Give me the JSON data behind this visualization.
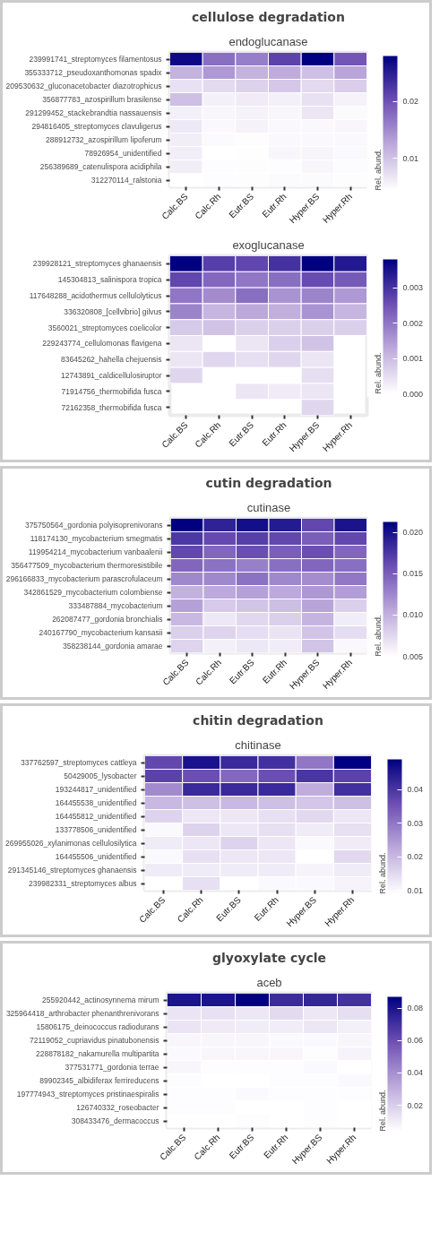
{
  "chart_data": [
    {
      "type": "heatmap",
      "title": "cellulose degradation",
      "subtitle": "endoglucanase",
      "clabel": "Rel. abund.",
      "categories": [
        "Calc.BS",
        "Calc.Rh",
        "Eutr.BS",
        "Eutr.Rh",
        "Hyper.BS",
        "Hyper.Rh"
      ],
      "y_categories": [
        "239991741_streptomyces filamentosus",
        "355333712_pseudoxanthomonas spadix",
        "209530632_gluconacetobacter diazotrophicus",
        "356877783_azospirillum brasilense",
        "291299452_stackebrandtia nassauensis",
        "294816405_streptomyces clavuligerus",
        "288912732_azospirillum lipoferum",
        "78926954_unidentified",
        "256389689_catenulispora acidiphila",
        "312270114_ralstonia"
      ],
      "cells": [
        [
          0.027,
          0.0174,
          0.0162,
          0.0214,
          0.028,
          0.0197
        ],
        [
          0.0115,
          0.0138,
          0.0115,
          0.0122,
          0.0103,
          0.0127
        ],
        [
          0.0072,
          0.0079,
          0.0086,
          0.0096,
          0.0079,
          0.0091
        ],
        [
          0.0103,
          0.0058,
          0.0063,
          0.0058,
          0.0072,
          0.0056
        ],
        [
          0.0058,
          0.0053,
          0.0056,
          0.0053,
          0.0068,
          0.0049
        ],
        [
          0.0065,
          0.0051,
          0.0056,
          0.0051,
          0.0051,
          0.0053
        ],
        [
          0.006,
          0.0049,
          0.0046,
          0.0051,
          0.0051,
          0.0051
        ],
        [
          0.006,
          0.0044,
          0.0045,
          0.0053,
          0.0055,
          0.005
        ],
        [
          0.006,
          0.0047,
          0.0046,
          0.0047,
          0.0053,
          0.0048
        ],
        [
          0.0044,
          0.0047,
          0.0046,
          0.0049,
          0.0049,
          0.0046
        ]
      ],
      "clim": [
        0.0044,
        0.028
      ],
      "cticks": [
        0.01,
        0.02
      ]
    },
    {
      "type": "heatmap",
      "subtitle": "exoglucanase",
      "clabel": "Rel. abund.",
      "categories": [
        "Calc.BS",
        "Calc.Rh",
        "Eutr.BS",
        "Eutr.Rh",
        "Hyper.BS",
        "Hyper.Rh"
      ],
      "y_categories": [
        "239928121_streptomyces ghanaensis",
        "145304813_salinispora tropica",
        "117648288_acidothermus cellulolyticus",
        "336320808_[cellvibrio] gilvus",
        "3560021_streptomyces coelicolor",
        "229243774_cellulomonas flavigena",
        "83645262_hahella chejuensis",
        "12743891_caldicellulosiruptor",
        "71914756_thermobifida fusca",
        "72162358_thermobifida fusca"
      ],
      "cells": [
        [
          0.0038,
          0.0028,
          0.0027,
          0.003,
          0.0038,
          0.0034
        ],
        [
          0.0027,
          0.0022,
          0.002,
          0.0021,
          0.0026,
          0.0024
        ],
        [
          0.002,
          0.0017,
          0.0021,
          0.0016,
          0.0018,
          0.0015
        ],
        [
          0.0018,
          0.0011,
          0.0013,
          0.0012,
          0.0016,
          0.0011
        ],
        [
          0.0008,
          0.0009,
          0.0007,
          0.0007,
          0.0007,
          0.0007
        ],
        [
          0.0004,
          null,
          0.0004,
          0.0007,
          0.0009,
          null
        ],
        [
          0.0004,
          0.0006,
          0.0005,
          0.0006,
          0.0004,
          null
        ],
        [
          0.0006,
          null,
          null,
          null,
          0.0005,
          null
        ],
        [
          null,
          null,
          0.0004,
          0.0003,
          0.0004,
          null
        ],
        [
          null,
          null,
          null,
          null,
          0.0006,
          null
        ]
      ],
      "clim": [
        0,
        0.0038
      ],
      "cticks": [
        {
          "value": 0,
          "label": "0.000"
        },
        0.001,
        0.002,
        0.003
      ]
    },
    {
      "type": "heatmap",
      "title": "cutin degradation",
      "subtitle": "cutinase",
      "clabel": "Rel. abund.",
      "categories": [
        "Calc.BS",
        "Calc.Rh",
        "Eutr.BS",
        "Eutr.Rh",
        "Hyper.BS",
        "Hyper.Rh"
      ],
      "y_categories": [
        "375750564_gordonia polyisoprenivorans",
        "118174130_mycobacterium smegmatis",
        "119954214_mycobacterium vanbaalenii",
        "356477509_mycobacterium thermoresistibile",
        "296166833_mycobacterium parascrofulaceum",
        "342861529_mycobacterium colombiense",
        "333487884_mycobacterium",
        "262087477_gordonia bronchialis",
        "240167790_mycobacterium kansasii",
        "358238144_gordonia amarae"
      ],
      "cells": [
        [
          0.0213,
          0.019,
          0.0203,
          0.0195,
          0.0165,
          0.02
        ],
        [
          0.0175,
          0.0163,
          0.017,
          0.0165,
          0.015,
          0.0165
        ],
        [
          0.0165,
          0.0145,
          0.016,
          0.015,
          0.016,
          0.0145
        ],
        [
          0.0145,
          0.0138,
          0.013,
          0.014,
          0.0145,
          0.014
        ],
        [
          0.0125,
          0.0125,
          0.0138,
          0.0125,
          0.0122,
          0.0135
        ],
        [
          0.01,
          0.0105,
          0.011,
          0.0105,
          0.0115,
          0.0112
        ],
        [
          0.011,
          0.0085,
          0.0088,
          0.0092,
          0.0108,
          0.008
        ],
        [
          0.0095,
          0.0065,
          0.0075,
          0.008,
          0.0098,
          0.0062
        ],
        [
          0.008,
          0.0078,
          0.0072,
          0.0068,
          0.0088,
          0.0072
        ],
        [
          0.0078,
          0.006,
          0.0065,
          0.0062,
          0.0088,
          0.0055
        ]
      ],
      "clim": [
        0.005,
        0.0213
      ],
      "cticks": [
        {
          "value": 0.005,
          "label": "0.005"
        },
        {
          "value": 0.01,
          "label": "0.010"
        },
        0.015,
        {
          "value": 0.02,
          "label": "0.020"
        }
      ]
    },
    {
      "type": "heatmap",
      "title": "chitin degradation",
      "subtitle": "chitinase",
      "clabel": "Rel. abund.",
      "categories": [
        "Calc.BS",
        "Calc.Rh",
        "Eutr.BS",
        "Eutr.Rh",
        "Hyper.BS",
        "Hyper.Rh"
      ],
      "y_categories": [
        "337762597_streptomyces cattleya",
        "50429005_lysobacter",
        "193244817_unidentified",
        "164455538_unidentified",
        "164455812_unidentified",
        "133778506_unidentified",
        "269955026_xylanimonas cellulosilytica",
        "164455506_unidentified",
        "291345146_streptomyces ghanaensis",
        "239982331_streptomyces albus"
      ],
      "cells": [
        [
          0.037,
          0.046,
          0.042,
          0.041,
          0.03,
          0.049
        ],
        [
          0.038,
          0.036,
          0.032,
          0.036,
          0.04,
          0.038
        ],
        [
          0.027,
          0.042,
          0.042,
          0.042,
          0.022,
          0.041
        ],
        [
          0.02,
          0.019,
          0.02,
          0.019,
          0.018,
          0.019
        ],
        [
          0.016,
          0.013,
          0.013,
          0.014,
          0.015,
          0.013
        ],
        [
          0.01,
          0.016,
          0.013,
          0.014,
          0.012,
          0.014
        ],
        [
          0.012,
          0.013,
          0.016,
          0.013,
          0.01,
          0.012
        ],
        [
          0.01,
          0.014,
          0.013,
          0.013,
          0.009,
          0.015
        ],
        [
          0.012,
          0.012,
          0.012,
          0.012,
          0.011,
          0.012
        ],
        [
          0.009,
          0.014,
          0.009,
          0.01,
          0.01,
          0.011
        ]
      ],
      "clim": [
        0.009,
        0.049
      ],
      "cticks": [
        0.01,
        0.02,
        0.03,
        0.04
      ]
    },
    {
      "type": "heatmap",
      "title": "glyoxylate cycle",
      "subtitle": "aceb",
      "clabel": "Rel. abund.",
      "categories": [
        "Calc.BS",
        "Calc.Rh",
        "Eutr.BS",
        "Eutr.Rh",
        "Hyper.BS",
        "Hyper.Rh"
      ],
      "y_categories": [
        "255920442_actinosynnema mirum",
        "325964418_arthrobacter phenanthrenivorans",
        "15806175_deinococcus radiodurans",
        "72119052_cupriavidus pinatubonensis",
        "228878182_nakamurella multipartita",
        "377531771_gordonia terrae",
        "89902345_albidiferax ferrireducens",
        "197774943_streptomyces pristinaespiralis",
        "126740332_roseobacter",
        "308433476_dermacoccus"
      ],
      "cells": [
        [
          0.08,
          0.08,
          0.087,
          0.072,
          0.074,
          0.07
        ],
        [
          0.013,
          0.014,
          0.012,
          0.016,
          0.012,
          0.015
        ],
        [
          0.013,
          0.011,
          0.01,
          0.01,
          0.012,
          0.009
        ],
        [
          0.007,
          0.007,
          0.007,
          0.006,
          0.006,
          0.007
        ],
        [
          0.006,
          0.007,
          0.007,
          0.007,
          0.005,
          0.008
        ],
        [
          0.007,
          0.005,
          0.005,
          0.005,
          0.006,
          0.004
        ],
        [
          0.005,
          0.004,
          0.004,
          0.005,
          0.005,
          0.006
        ],
        [
          0.005,
          0.005,
          0.006,
          0.005,
          0.005,
          0.005
        ],
        [
          0.005,
          0.005,
          0.004,
          0.004,
          0.005,
          0.004
        ],
        [
          0.004,
          0.004,
          0.005,
          0.004,
          0.005,
          0.004
        ]
      ],
      "clim": [
        0.004,
        0.087
      ],
      "cticks": [
        0.02,
        0.04,
        0.06,
        0.08
      ]
    }
  ]
}
